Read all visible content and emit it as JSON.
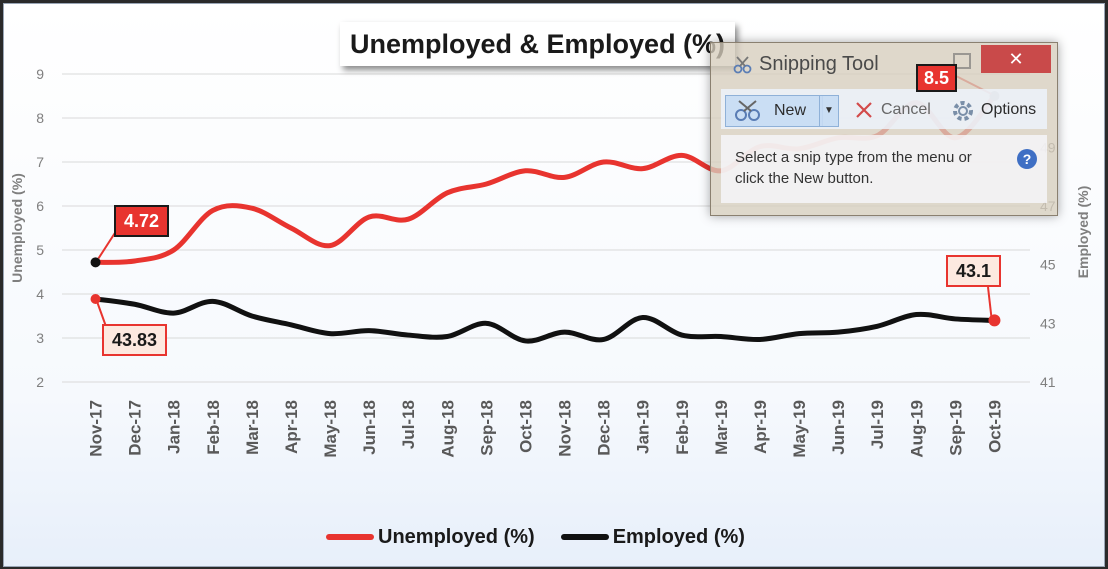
{
  "chart_data": {
    "type": "line",
    "title": "Unemployed & Employed (%)",
    "categories": [
      "Nov-17",
      "Dec-17",
      "Jan-18",
      "Feb-18",
      "Mar-18",
      "Apr-18",
      "May-18",
      "Jun-18",
      "Jul-18",
      "Aug-18",
      "Sep-18",
      "Oct-18",
      "Nov-18",
      "Dec-18",
      "Jan-19",
      "Feb-19",
      "Mar-19",
      "Apr-19",
      "May-19",
      "Jun-19",
      "Jul-19",
      "Aug-19",
      "Sep-19",
      "Oct-19"
    ],
    "series": [
      {
        "name": "Unemployed (%)",
        "axis": "left",
        "color": "#e8342f",
        "values": [
          4.72,
          4.75,
          5.0,
          5.9,
          5.95,
          5.5,
          5.1,
          5.75,
          5.7,
          6.3,
          6.5,
          6.8,
          6.65,
          7.0,
          6.85,
          7.15,
          6.8,
          7.35,
          7.3,
          7.55,
          7.6,
          8.35,
          7.55,
          8.5
        ]
      },
      {
        "name": "Employed (%)",
        "axis": "right",
        "color": "#111111",
        "values": [
          43.83,
          43.65,
          43.35,
          43.75,
          43.25,
          42.95,
          42.65,
          42.75,
          42.6,
          42.55,
          43.0,
          42.4,
          42.7,
          42.45,
          43.2,
          42.6,
          42.55,
          42.45,
          42.65,
          42.7,
          42.9,
          43.3,
          43.15,
          43.1
        ]
      }
    ],
    "y_left": {
      "label": "Unemployed (%)",
      "min": 2,
      "max": 9,
      "ticks": [
        "2",
        "3",
        "4",
        "5",
        "6",
        "7",
        "8",
        "9"
      ]
    },
    "y_right": {
      "label": "Employed (%)",
      "min": 41,
      "max": 51.5,
      "ticks": [
        "41",
        "43",
        "45",
        "47",
        "49"
      ]
    },
    "grid": true,
    "legend_placement": "bottom",
    "annotations": [
      "4.72",
      "43.83",
      "43.1",
      "8.5"
    ]
  },
  "legend": {
    "unemployed": "Unemployed (%)",
    "employed": "Employed (%)"
  },
  "callouts": {
    "unemp_start": "4.72",
    "emp_start": "43.83",
    "end": "43.1",
    "peak": "8.5"
  },
  "snipping_tool": {
    "title": "Snipping Tool",
    "close": "✕",
    "new_label": "New",
    "dropdown": "▼",
    "cancel_label": "Cancel",
    "options_label": "Options",
    "message": "Select a snip type from the menu or click the New button.",
    "help": "?"
  }
}
